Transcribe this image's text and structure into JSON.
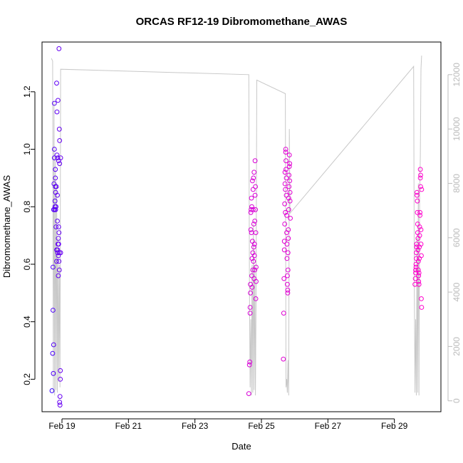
{
  "chart_data": {
    "type": "scatter",
    "title": "ORCAS RF12-19 Dibromomethane_AWAS",
    "xlabel": "Date",
    "ylabel": "Dibromomethane_AWAS",
    "x_tick_labels": [
      "Feb 19",
      "Feb 21",
      "Feb 23",
      "Feb 25",
      "Feb 27",
      "Feb 29"
    ],
    "x_ticks": [
      19,
      21,
      23,
      25,
      27,
      29
    ],
    "xlim": [
      18.4,
      30.4
    ],
    "ylim": [
      0.087,
      1.373
    ],
    "y_ticks": [
      0.2,
      0.4,
      0.6,
      0.8,
      1.0,
      1.2
    ],
    "y_tick_labels": [
      "0.2",
      "0.4",
      "0.6",
      "0.8",
      "1.0",
      "1.2"
    ],
    "y2_ticks": [
      0,
      2000,
      4000,
      6000,
      8000,
      10000,
      12000
    ],
    "y2_tick_labels": [
      "0",
      "2000",
      "4000",
      "6000",
      "8000",
      "10000",
      "12000"
    ],
    "y2lim": [
      -400,
      13200
    ],
    "colors": {
      "early": "#3300ff",
      "late": "#ff00cc",
      "altitude_line": "#c8c8c8",
      "axis": "#000000",
      "right_axis": "#bbbbbb"
    },
    "series": [
      {
        "flight": "RF12",
        "points": [
          [
            18.7,
            0.16
          ],
          [
            18.72,
            0.29
          ],
          [
            18.73,
            0.44
          ],
          [
            18.73,
            0.59
          ],
          [
            18.74,
            0.22
          ],
          [
            18.75,
            0.32
          ],
          [
            18.75,
            0.79
          ],
          [
            18.76,
            0.88
          ],
          [
            18.77,
            1.0
          ],
          [
            18.77,
            0.97
          ],
          [
            18.77,
            1.16
          ],
          [
            18.78,
            0.79
          ],
          [
            18.79,
            0.82
          ],
          [
            18.79,
            0.8
          ],
          [
            18.8,
            0.87
          ],
          [
            18.8,
            0.9
          ],
          [
            18.8,
            0.93
          ],
          [
            18.81,
            0.79
          ],
          [
            18.81,
            0.85
          ],
          [
            18.82,
            0.73
          ],
          [
            18.82,
            0.8
          ],
          [
            18.83,
            0.87
          ],
          [
            18.84,
            1.23
          ],
          [
            18.84,
            0.65
          ],
          [
            18.84,
            0.61
          ],
          [
            18.85,
            1.13
          ],
          [
            18.85,
            0.98
          ],
          [
            18.86,
            0.84
          ],
          [
            18.86,
            0.75
          ],
          [
            18.87,
            0.65
          ],
          [
            18.87,
            0.97
          ],
          [
            18.87,
            0.64
          ],
          [
            18.88,
            0.67
          ],
          [
            18.88,
            1.17
          ],
          [
            18.89,
            0.63
          ],
          [
            18.89,
            0.56
          ],
          [
            18.89,
            0.69
          ],
          [
            18.9,
            0.96
          ],
          [
            18.9,
            0.67
          ],
          [
            18.9,
            0.73
          ],
          [
            18.91,
            0.71
          ],
          [
            18.91,
            1.35
          ],
          [
            18.91,
            0.61
          ],
          [
            18.92,
            0.58
          ],
          [
            18.92,
            0.64
          ],
          [
            18.92,
            1.07
          ],
          [
            18.93,
            0.95
          ],
          [
            18.93,
            1.03
          ],
          [
            18.93,
            0.12
          ],
          [
            18.94,
            0.14
          ],
          [
            18.94,
            0.11
          ],
          [
            18.95,
            0.2
          ],
          [
            18.95,
            0.23
          ],
          [
            18.96,
            0.97
          ],
          [
            18.96,
            0.64
          ]
        ]
      },
      {
        "flight": "RF13",
        "points": [
          [
            24.62,
            0.15
          ],
          [
            24.64,
            0.25
          ],
          [
            24.65,
            0.26
          ],
          [
            24.66,
            0.43
          ],
          [
            24.66,
            0.45
          ],
          [
            24.67,
            0.5
          ],
          [
            24.67,
            0.53
          ],
          [
            24.68,
            0.72
          ],
          [
            24.68,
            0.78
          ],
          [
            24.69,
            0.79
          ],
          [
            24.7,
            0.83
          ],
          [
            24.7,
            0.71
          ],
          [
            24.71,
            0.56
          ],
          [
            24.71,
            0.8
          ],
          [
            24.72,
            0.62
          ],
          [
            24.72,
            0.52
          ],
          [
            24.73,
            0.68
          ],
          [
            24.73,
            0.89
          ],
          [
            24.74,
            0.58
          ],
          [
            24.74,
            0.64
          ],
          [
            24.75,
            0.86
          ],
          [
            24.75,
            0.79
          ],
          [
            24.76,
            0.9
          ],
          [
            24.76,
            0.61
          ],
          [
            24.77,
            0.66
          ],
          [
            24.77,
            0.74
          ],
          [
            24.78,
            0.92
          ],
          [
            24.78,
            0.55
          ],
          [
            24.79,
            0.67
          ],
          [
            24.79,
            0.63
          ],
          [
            24.8,
            0.75
          ],
          [
            24.8,
            0.58
          ],
          [
            24.81,
            0.96
          ],
          [
            24.81,
            0.84
          ],
          [
            24.82,
            0.87
          ],
          [
            24.82,
            0.79
          ],
          [
            24.83,
            0.48
          ],
          [
            24.83,
            0.71
          ],
          [
            24.84,
            0.59
          ],
          [
            24.84,
            0.54
          ]
        ]
      },
      {
        "flight": "RF14",
        "points": [
          [
            25.66,
            0.27
          ],
          [
            25.67,
            0.43
          ],
          [
            25.68,
            0.55
          ],
          [
            25.69,
            0.65
          ],
          [
            25.69,
            0.68
          ],
          [
            25.7,
            0.74
          ],
          [
            25.7,
            0.81
          ],
          [
            25.71,
            0.88
          ],
          [
            25.71,
            0.92
          ],
          [
            25.72,
            0.78
          ],
          [
            25.72,
            0.86
          ],
          [
            25.73,
            0.99
          ],
          [
            25.73,
            1.0
          ],
          [
            25.74,
            0.96
          ],
          [
            25.74,
            0.93
          ],
          [
            25.75,
            0.9
          ],
          [
            25.75,
            0.84
          ],
          [
            25.76,
            0.77
          ],
          [
            25.76,
            0.71
          ],
          [
            25.77,
            0.67
          ],
          [
            25.77,
            0.62
          ],
          [
            25.78,
            0.56
          ],
          [
            25.78,
            0.53
          ],
          [
            25.79,
            0.51
          ],
          [
            25.79,
            0.5
          ],
          [
            25.8,
            0.58
          ],
          [
            25.8,
            0.64
          ],
          [
            25.81,
            0.69
          ],
          [
            25.81,
            0.72
          ],
          [
            25.82,
            0.79
          ],
          [
            25.82,
            0.83
          ],
          [
            25.83,
            0.87
          ],
          [
            25.83,
            0.91
          ],
          [
            25.84,
            0.94
          ],
          [
            25.84,
            0.98
          ],
          [
            25.85,
            0.95
          ],
          [
            25.85,
            0.89
          ],
          [
            25.86,
            0.85
          ],
          [
            25.86,
            0.82
          ],
          [
            25.87,
            0.76
          ]
        ]
      },
      {
        "flight": "RF15",
        "points": [
          [
            29.62,
            0.53
          ],
          [
            29.63,
            0.55
          ],
          [
            29.64,
            0.57
          ],
          [
            29.64,
            0.58
          ],
          [
            29.65,
            0.59
          ],
          [
            29.65,
            0.6
          ],
          [
            29.66,
            0.62
          ],
          [
            29.66,
            0.64
          ],
          [
            29.67,
            0.66
          ],
          [
            29.67,
            0.67
          ],
          [
            29.68,
            0.84
          ],
          [
            29.68,
            0.85
          ],
          [
            29.69,
            0.82
          ],
          [
            29.69,
            0.78
          ],
          [
            29.7,
            0.74
          ],
          [
            29.7,
            0.71
          ],
          [
            29.71,
            0.69
          ],
          [
            29.71,
            0.65
          ],
          [
            29.72,
            0.61
          ],
          [
            29.72,
            0.58
          ],
          [
            29.73,
            0.56
          ],
          [
            29.73,
            0.54
          ],
          [
            29.74,
            0.53
          ],
          [
            29.74,
            0.57
          ],
          [
            29.75,
            0.62
          ],
          [
            29.75,
            0.66
          ],
          [
            29.76,
            0.7
          ],
          [
            29.76,
            0.73
          ],
          [
            29.77,
            0.77
          ],
          [
            29.77,
            0.78
          ],
          [
            29.78,
            0.9
          ],
          [
            29.78,
            0.93
          ],
          [
            29.79,
            0.91
          ],
          [
            29.79,
            0.87
          ],
          [
            29.8,
            0.72
          ],
          [
            29.8,
            0.67
          ],
          [
            29.81,
            0.63
          ],
          [
            29.81,
            0.48
          ],
          [
            29.82,
            0.45
          ],
          [
            29.82,
            0.86
          ]
        ]
      }
    ],
    "altitude": [
      [
        18.68,
        12600
      ],
      [
        18.72,
        12500
      ],
      [
        18.74,
        300
      ],
      [
        18.76,
        11000
      ],
      [
        18.78,
        200
      ],
      [
        18.8,
        9000
      ],
      [
        18.82,
        400
      ],
      [
        18.84,
        8000
      ],
      [
        18.86,
        300
      ],
      [
        18.88,
        6000
      ],
      [
        18.9,
        700
      ],
      [
        18.92,
        5000
      ],
      [
        18.94,
        500
      ],
      [
        18.96,
        12200
      ],
      [
        24.62,
        12000
      ],
      [
        24.64,
        4200
      ],
      [
        24.66,
        500
      ],
      [
        24.68,
        3000
      ],
      [
        24.7,
        200
      ],
      [
        24.72,
        5000
      ],
      [
        24.74,
        300
      ],
      [
        24.76,
        6500
      ],
      [
        24.78,
        400
      ],
      [
        24.8,
        5000
      ],
      [
        24.82,
        200
      ],
      [
        24.84,
        3800
      ],
      [
        24.86,
        11800
      ],
      [
        25.72,
        11300
      ],
      [
        25.74,
        500
      ],
      [
        25.76,
        800
      ],
      [
        25.78,
        300
      ],
      [
        25.8,
        1500
      ],
      [
        25.82,
        200
      ],
      [
        25.84,
        10000
      ],
      [
        25.86,
        6900
      ],
      [
        29.58,
        12300
      ],
      [
        29.6,
        4000
      ],
      [
        29.62,
        300
      ],
      [
        29.64,
        3000
      ],
      [
        29.66,
        200
      ],
      [
        29.68,
        6000
      ],
      [
        29.7,
        300
      ],
      [
        29.72,
        8000
      ],
      [
        29.74,
        200
      ],
      [
        29.76,
        7500
      ],
      [
        29.78,
        9000
      ],
      [
        29.8,
        12200
      ],
      [
        29.82,
        12700
      ]
    ]
  }
}
